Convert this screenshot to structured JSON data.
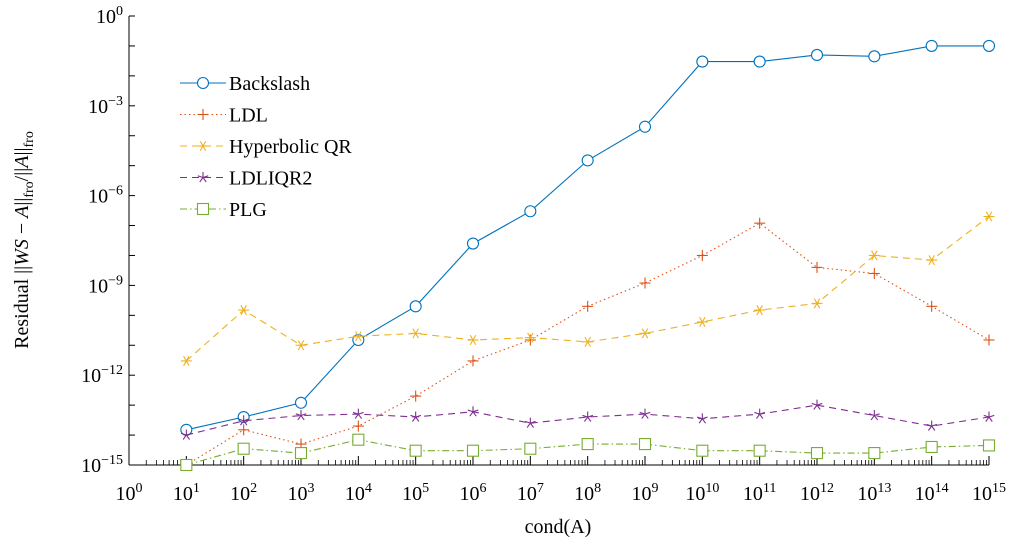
{
  "chart_data": {
    "type": "line",
    "xscale": "log",
    "yscale": "log",
    "xlabel": "cond(A)",
    "ylabel": "Residual ||WS − A||fro/||A||fro",
    "ylabel_parts": {
      "prefix": "Residual ",
      "bar_open": "||",
      "ws": "WS",
      "minus": " − ",
      "a1": "A",
      "bar_close1": "||",
      "sub1": "fro",
      "slash": "/",
      "bar_open2": "||",
      "a2": "A",
      "bar_close2": "||",
      "sub2": "fro"
    },
    "xlim": [
      1,
      1000000000000000.0
    ],
    "ylim": [
      1e-15,
      1
    ],
    "x_ticks": [
      {
        "base": "10",
        "exp": "0",
        "value": 1
      },
      {
        "base": "10",
        "exp": "1",
        "value": 10.0
      },
      {
        "base": "10",
        "exp": "2",
        "value": 100.0
      },
      {
        "base": "10",
        "exp": "3",
        "value": 1000.0
      },
      {
        "base": "10",
        "exp": "4",
        "value": 10000.0
      },
      {
        "base": "10",
        "exp": "5",
        "value": 100000.0
      },
      {
        "base": "10",
        "exp": "6",
        "value": 1000000.0
      },
      {
        "base": "10",
        "exp": "7",
        "value": 10000000.0
      },
      {
        "base": "10",
        "exp": "8",
        "value": 100000000.0
      },
      {
        "base": "10",
        "exp": "9",
        "value": 1000000000.0
      },
      {
        "base": "10",
        "exp": "10",
        "value": 10000000000.0
      },
      {
        "base": "10",
        "exp": "11",
        "value": 100000000000.0
      },
      {
        "base": "10",
        "exp": "12",
        "value": 1000000000000.0
      },
      {
        "base": "10",
        "exp": "13",
        "value": 10000000000000.0
      },
      {
        "base": "10",
        "exp": "14",
        "value": 100000000000000.0
      },
      {
        "base": "10",
        "exp": "15",
        "value": 1000000000000000.0
      }
    ],
    "y_ticks": [
      {
        "base": "10",
        "exp": "0",
        "value": 1
      },
      {
        "base": "10",
        "exp": "−3",
        "value": 0.001
      },
      {
        "base": "10",
        "exp": "−6",
        "value": 1e-06
      },
      {
        "base": "10",
        "exp": "−9",
        "value": 1e-09
      },
      {
        "base": "10",
        "exp": "−12",
        "value": 1e-12
      },
      {
        "base": "10",
        "exp": "−15",
        "value": 1e-15
      }
    ],
    "x": [
      10.0,
      100.0,
      1000.0,
      10000.0,
      100000.0,
      1000000.0,
      10000000.0,
      100000000.0,
      1000000000.0,
      10000000000.0,
      100000000000.0,
      1000000000000.0,
      10000000000000.0,
      100000000000000.0,
      1000000000000000.0
    ],
    "legend_position": "upper-left",
    "series": [
      {
        "name": "Backslash",
        "color": "#0072bd",
        "marker": "circle",
        "dash": "solid",
        "values": [
          1.5e-14,
          4e-14,
          1.2e-13,
          1.5e-11,
          2e-10,
          2.5e-08,
          3e-07,
          1.5e-05,
          0.0002,
          0.03,
          0.03,
          0.05,
          0.045,
          0.1,
          0.1
        ]
      },
      {
        "name": "LDL",
        "color": "#d95319",
        "marker": "plus",
        "dash": "dotted",
        "values": [
          1e-15,
          1.5e-14,
          5e-15,
          2e-14,
          2e-13,
          3e-12,
          1.5e-11,
          2e-10,
          1.2e-09,
          1e-08,
          1.2e-07,
          4e-09,
          2.5e-09,
          2e-10,
          1.5e-11
        ]
      },
      {
        "name": "Hyperbolic QR",
        "color": "#edb120",
        "marker": "asterisk",
        "dash": "dashed",
        "values": [
          3e-12,
          1.5e-10,
          1e-11,
          2e-11,
          2.5e-11,
          1.5e-11,
          1.8e-11,
          1.3e-11,
          2.5e-11,
          6e-11,
          1.5e-10,
          2.5e-10,
          1e-08,
          7e-09,
          2e-07
        ]
      },
      {
        "name": "LDLIQR2",
        "color": "#7e2f8e",
        "marker": "star",
        "dash": "dashed",
        "values": [
          1e-14,
          3e-14,
          4.5e-14,
          5e-14,
          4e-14,
          6e-14,
          2.5e-14,
          4e-14,
          5e-14,
          3.5e-14,
          5e-14,
          1e-13,
          4.5e-14,
          2e-14,
          4e-14
        ]
      },
      {
        "name": "PLG",
        "color": "#77ac30",
        "marker": "square",
        "dash": "dashdot",
        "values": [
          1e-15,
          3.5e-15,
          2.5e-15,
          7e-15,
          3e-15,
          3e-15,
          3.5e-15,
          5e-15,
          5e-15,
          3e-15,
          3e-15,
          2.5e-15,
          2.5e-15,
          4e-15,
          4.5e-15
        ]
      }
    ]
  }
}
